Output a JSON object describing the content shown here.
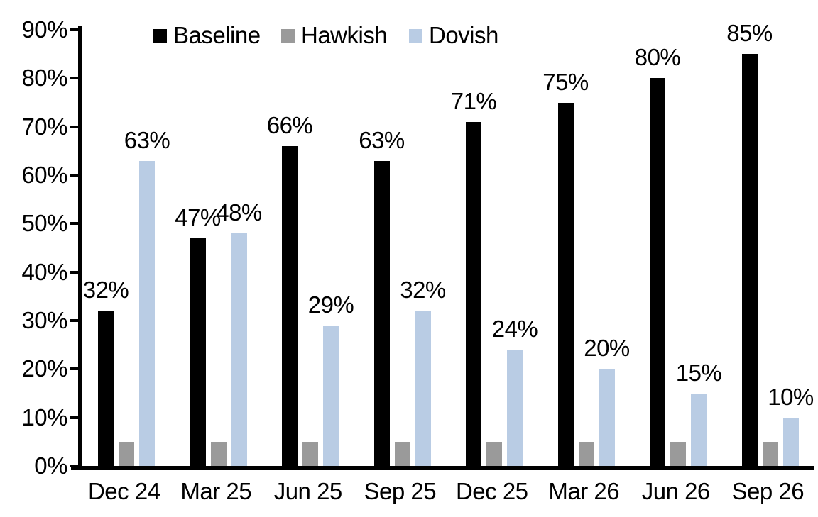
{
  "chart_data": {
    "type": "bar",
    "title": "",
    "xlabel": "",
    "ylabel": "",
    "categories": [
      "Dec 24",
      "Mar 25",
      "Jun 25",
      "Sep 25",
      "Dec 25",
      "Mar 26",
      "Jun 26",
      "Sep 26"
    ],
    "series": [
      {
        "name": "Baseline",
        "color": "#000000",
        "values": [
          32,
          47,
          66,
          63,
          71,
          75,
          80,
          85
        ],
        "show_labels": true
      },
      {
        "name": "Hawkish",
        "color": "#9A9A9A",
        "values": [
          5,
          5,
          5,
          5,
          5,
          5,
          5,
          5
        ],
        "show_labels": false
      },
      {
        "name": "Dovish",
        "color": "#B9CCE4",
        "values": [
          63,
          48,
          29,
          32,
          24,
          20,
          15,
          10
        ],
        "show_labels": true
      }
    ],
    "label_format": "{v}%",
    "ylim": [
      0,
      90
    ],
    "ytick_step": 10,
    "ytick_labels": [
      "0%",
      "10%",
      "20%",
      "30%",
      "40%",
      "50%",
      "60%",
      "70%",
      "80%",
      "90%"
    ],
    "legend_position": "top",
    "grid": false,
    "axis_color": "#000000",
    "background_color": "#FFFFFF"
  }
}
